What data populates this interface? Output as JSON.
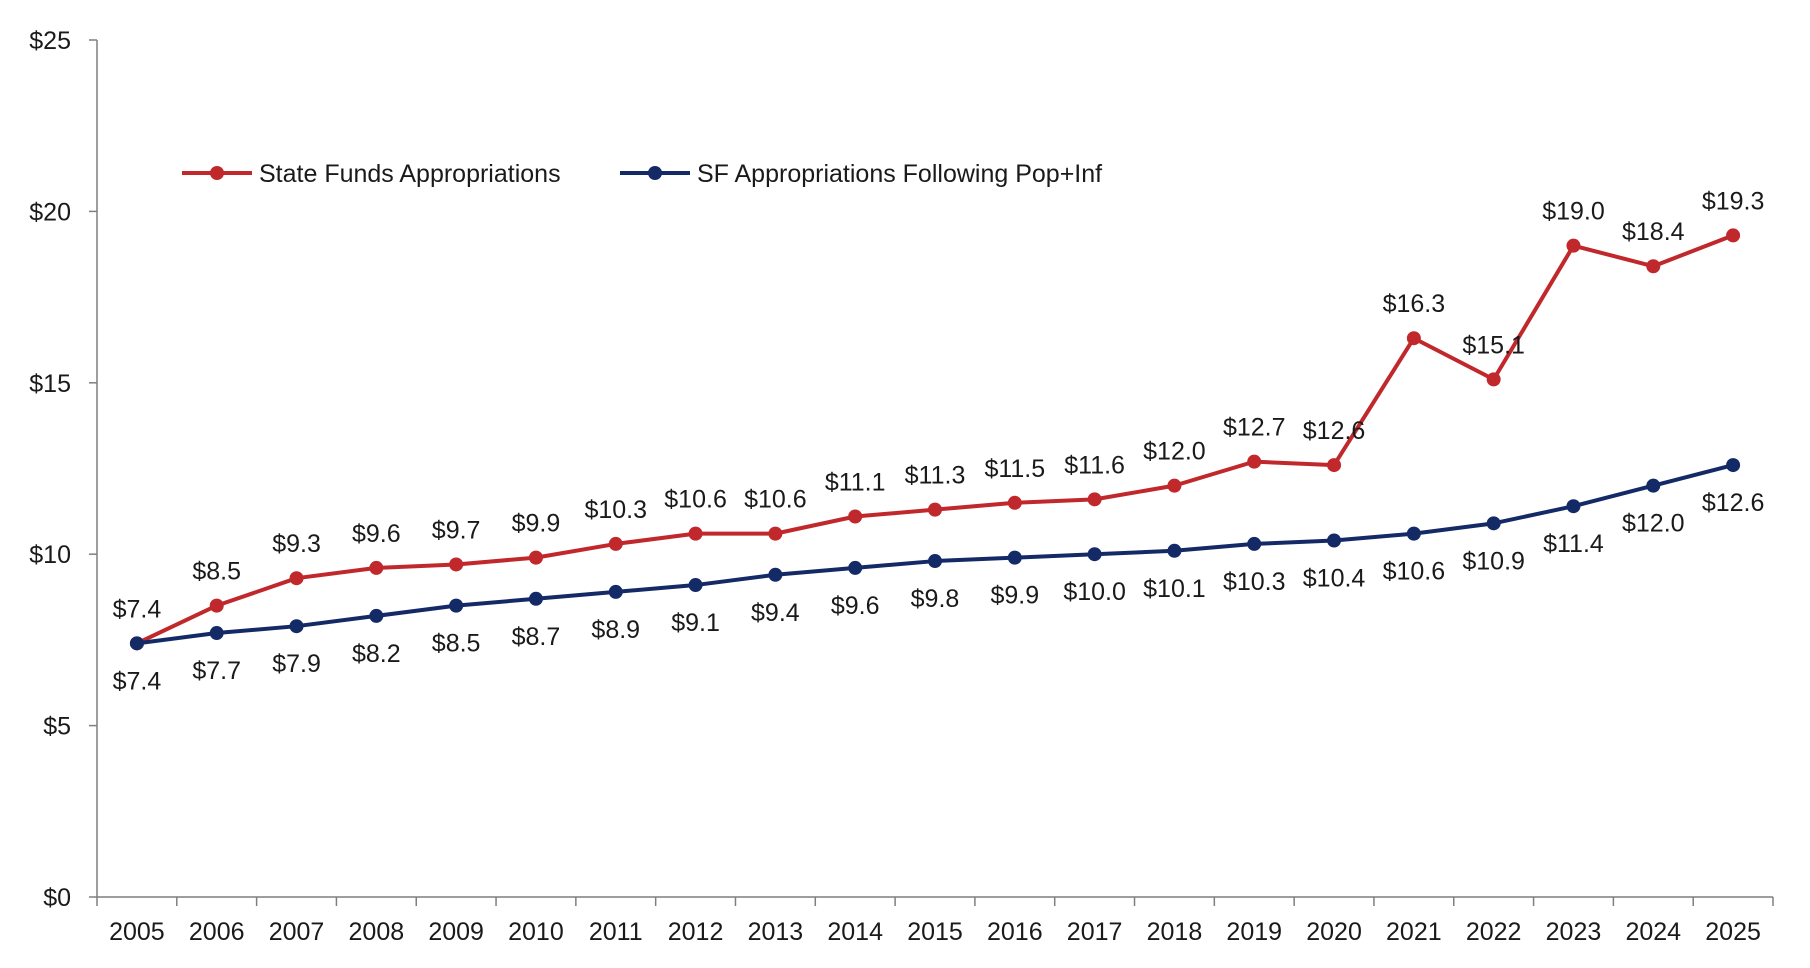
{
  "chart_data": {
    "type": "line",
    "title": "",
    "xlabel": "",
    "ylabel": "",
    "x": [
      "2005",
      "2006",
      "2007",
      "2008",
      "2009",
      "2010",
      "2011",
      "2012",
      "2013",
      "2014",
      "2015",
      "2016",
      "2017",
      "2018",
      "2019",
      "2020",
      "2021",
      "2022",
      "2023",
      "2024",
      "2025"
    ],
    "ylim": [
      0,
      25
    ],
    "yticks": [
      0,
      5,
      10,
      15,
      20,
      25
    ],
    "ytick_labels": [
      "$0",
      "$5",
      "$10",
      "$15",
      "$20",
      "$25"
    ],
    "grid": false,
    "legend_position": "top-left",
    "series": [
      {
        "name": "State Funds Appropriations",
        "color": "#c0282b",
        "label_position": "above",
        "values": [
          7.4,
          8.5,
          9.3,
          9.6,
          9.7,
          9.9,
          10.3,
          10.6,
          10.6,
          11.1,
          11.3,
          11.5,
          11.6,
          12.0,
          12.7,
          12.6,
          16.3,
          15.1,
          19.0,
          18.4,
          19.3
        ],
        "labels": [
          "$7.4",
          "$8.5",
          "$9.3",
          "$9.6",
          "$9.7",
          "$9.9",
          "$10.3",
          "$10.6",
          "$10.6",
          "$11.1",
          "$11.3",
          "$11.5",
          "$11.6",
          "$12.0",
          "$12.7",
          "$12.6",
          "$16.3",
          "$15.1",
          "$19.0",
          "$18.4",
          "$19.3"
        ]
      },
      {
        "name": "SF Appropriations Following Pop+Inf",
        "color": "#142a66",
        "label_position": "below",
        "values": [
          7.4,
          7.7,
          7.9,
          8.2,
          8.5,
          8.7,
          8.9,
          9.1,
          9.4,
          9.6,
          9.8,
          9.9,
          10.0,
          10.1,
          10.3,
          10.4,
          10.6,
          10.9,
          11.4,
          12.0,
          12.6
        ],
        "labels": [
          "$7.4",
          "$7.7",
          "$7.9",
          "$8.2",
          "$8.5",
          "$8.7",
          "$8.9",
          "$9.1",
          "$9.4",
          "$9.6",
          "$9.8",
          "$9.9",
          "$10.0",
          "$10.1",
          "$10.3",
          "$10.4",
          "$10.6",
          "$10.9",
          "$11.4",
          "$12.0",
          "$12.6"
        ]
      }
    ]
  }
}
